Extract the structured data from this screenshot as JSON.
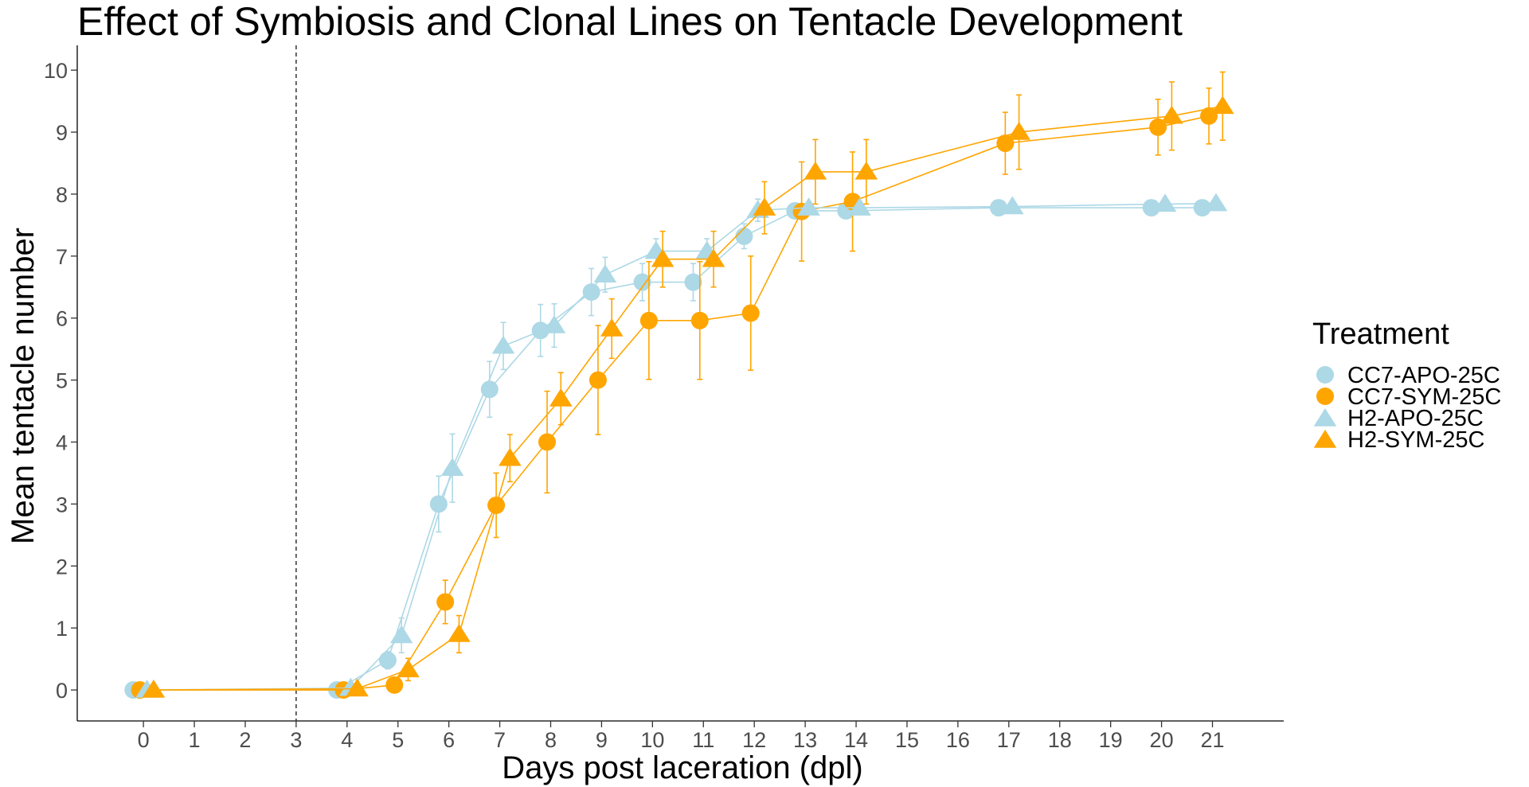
{
  "chart_data": {
    "type": "line",
    "title": "Effect of Symbiosis and Clonal Lines on Tentacle Development",
    "xlabel": "Days post laceration (dpl)",
    "ylabel": "Mean tentacle number",
    "x_ticks": [
      0,
      1,
      2,
      3,
      4,
      5,
      6,
      7,
      8,
      9,
      10,
      11,
      12,
      13,
      14,
      15,
      16,
      17,
      18,
      19,
      20,
      21
    ],
    "y_ticks": [
      0,
      1,
      2,
      3,
      4,
      5,
      6,
      7,
      8,
      9,
      10
    ],
    "xlim": [
      -1.3,
      22.4
    ],
    "ylim": [
      -0.5,
      10.4
    ],
    "vline_x": 3,
    "grid": false,
    "legend": {
      "title": "Treatment",
      "position": "right"
    },
    "series": [
      {
        "name": "CC7-APO-25C",
        "color": "#add8e6",
        "marker": "circle",
        "dodge": -0.2,
        "x": [
          0,
          4,
          5,
          6,
          7,
          8,
          9,
          10,
          11,
          12,
          13,
          14,
          17,
          20,
          21
        ],
        "y": [
          0,
          0,
          0.48,
          3.0,
          4.85,
          5.8,
          6.42,
          6.58,
          6.58,
          7.32,
          7.73,
          7.73,
          7.78,
          7.78,
          7.78
        ],
        "err": [
          0,
          0,
          0.14,
          0.45,
          0.45,
          0.42,
          0.38,
          0.3,
          0.3,
          0.2,
          0.1,
          0.1,
          0.08,
          0.08,
          0.08
        ]
      },
      {
        "name": "CC7-SYM-25C",
        "color": "#ffa500",
        "marker": "circle",
        "dodge": -0.07,
        "x": [
          0,
          4,
          5,
          6,
          7,
          8,
          9,
          10,
          11,
          12,
          13,
          14,
          17,
          20,
          21
        ],
        "y": [
          0,
          0,
          0.08,
          1.42,
          2.98,
          4.0,
          5.0,
          5.96,
          5.96,
          6.08,
          7.72,
          7.88,
          8.82,
          9.08,
          9.26
        ],
        "err": [
          0,
          0,
          0.05,
          0.35,
          0.52,
          0.82,
          0.88,
          0.95,
          0.95,
          0.92,
          0.8,
          0.8,
          0.5,
          0.45,
          0.45
        ]
      },
      {
        "name": "H2-APO-25C",
        "color": "#add8e6",
        "marker": "triangle",
        "dodge": 0.07,
        "x": [
          0,
          4,
          5,
          6,
          7,
          8,
          9,
          10,
          11,
          12,
          13,
          14,
          17,
          20,
          21
        ],
        "y": [
          0,
          0.03,
          0.88,
          3.58,
          5.55,
          5.88,
          6.7,
          7.08,
          7.08,
          7.74,
          7.78,
          7.78,
          7.8,
          7.84,
          7.85
        ],
        "err": [
          0,
          0.03,
          0.28,
          0.55,
          0.38,
          0.35,
          0.28,
          0.2,
          0.2,
          0.18,
          0.08,
          0.08,
          0.06,
          0.06,
          0.06
        ]
      },
      {
        "name": "H2-SYM-25C",
        "color": "#ffa500",
        "marker": "triangle",
        "dodge": 0.2,
        "x": [
          0,
          4,
          5,
          6,
          7,
          8,
          9,
          10,
          11,
          12,
          13,
          14,
          17,
          20,
          21
        ],
        "y": [
          0,
          0.02,
          0.33,
          0.9,
          3.74,
          4.7,
          5.83,
          6.95,
          6.95,
          7.78,
          8.36,
          8.36,
          9.0,
          9.26,
          9.42
        ],
        "err": [
          0,
          0.02,
          0.18,
          0.3,
          0.38,
          0.42,
          0.48,
          0.45,
          0.45,
          0.42,
          0.52,
          0.52,
          0.6,
          0.55,
          0.55
        ]
      }
    ]
  }
}
